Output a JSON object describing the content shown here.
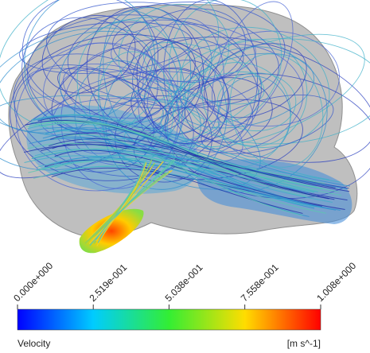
{
  "colorbar": {
    "title": "Velocity",
    "unit": "[m s^-1]",
    "range": [
      0,
      1.008
    ],
    "ticks": [
      {
        "value": 0,
        "label": "0.000e+000"
      },
      {
        "value": 0.2519,
        "label": "2.519e-001"
      },
      {
        "value": 0.5038,
        "label": "5.038e-001"
      },
      {
        "value": 0.7558,
        "label": "7.558e-001"
      },
      {
        "value": 1.008,
        "label": "1.008e+000"
      }
    ]
  }
}
